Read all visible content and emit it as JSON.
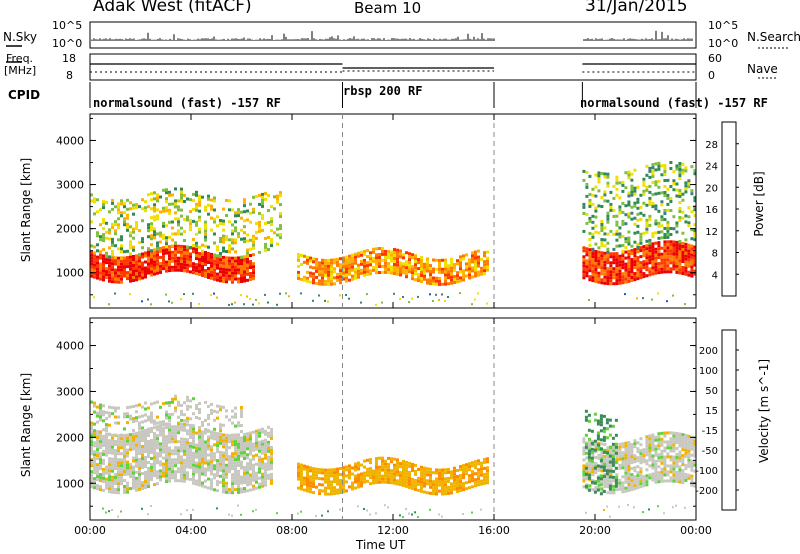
{
  "header": {
    "radar_title": "Adak West (fitACF)",
    "beam": "Beam 10",
    "date": "31/Jan/2015"
  },
  "summary_panels": {
    "nsky_label": "N.Sky",
    "nsearch_label": "N.Search",
    "noise_ticks": [
      "10^5",
      "10^0"
    ],
    "freq_label_top": "Freq.",
    "freq_label_unit": "[MHz]",
    "freq_ticks": [
      "18",
      "8"
    ],
    "nave_label": "Nave",
    "nave_ticks": [
      "60",
      "0"
    ],
    "cpid_label": "CPID",
    "cpid_segments": [
      {
        "label": "normalsound (fast) -157 RF",
        "start_hour": 0,
        "end_hour": 10
      },
      {
        "label": "rbsp 200 RF",
        "start_hour": 10,
        "end_hour": 16
      },
      {
        "label": "normalsound (fast) -157 RF",
        "start_hour": 19.5,
        "end_hour": 24
      }
    ]
  },
  "colorbars": {
    "power": {
      "label": "Power [dB]",
      "ticks": [
        "4",
        "8",
        "12",
        "16",
        "20",
        "24",
        "28"
      ],
      "colors": [
        "#1428e6",
        "#2a52be",
        "#3f7f7f",
        "#2e8b57",
        "#7fbf3f",
        "#f0e000",
        "#ffb000",
        "#ff7a00",
        "#ff3800",
        "#ee0000"
      ]
    },
    "velocity": {
      "label": "Velocity [m s^-1]",
      "ticks": [
        "200",
        "100",
        "50",
        "15",
        "-15",
        "-50",
        "-100",
        "-200"
      ],
      "colors": [
        "#1e2bb8",
        "#2f6fc4",
        "#3c8a5a",
        "#5fd23c",
        "#c8c8c0",
        "#f0b400",
        "#ff8c00",
        "#ff5000",
        "#ee0000"
      ]
    }
  },
  "chart_data": [
    {
      "type": "heatmap",
      "title": "Power",
      "ylabel": "Slant Range [km]",
      "xlabel": "Time UT",
      "x_ticks": [
        "00:00",
        "04:00",
        "08:00",
        "12:00",
        "16:00",
        "20:00",
        "00:00"
      ],
      "y_ticks": [
        "1000",
        "2000",
        "3000",
        "4000"
      ],
      "xlim_hours": [
        0,
        24
      ],
      "ylim_km": [
        200,
        4600
      ],
      "data_gap_hours": [
        16,
        19.5
      ],
      "dashed_time_markers_hours": [
        10,
        16
      ],
      "echo_regions": [
        {
          "start_hour": 0.0,
          "end_hour": 6.5,
          "range_low_km": 900,
          "range_high_km": 1500,
          "level": "strong",
          "value_db": 28
        },
        {
          "start_hour": 0.0,
          "end_hour": 7.5,
          "range_low_km": 1500,
          "range_high_km": 2800,
          "level": "patchy",
          "value_db": 16
        },
        {
          "start_hour": 8.2,
          "end_hour": 15.8,
          "range_low_km": 850,
          "range_high_km": 1450,
          "level": "moderate",
          "value_db": 22
        },
        {
          "start_hour": 19.5,
          "end_hour": 24.0,
          "range_low_km": 900,
          "range_high_km": 1600,
          "level": "strong",
          "value_db": 28
        },
        {
          "start_hour": 19.5,
          "end_hour": 24.0,
          "range_low_km": 1600,
          "range_high_km": 3400,
          "level": "patchy",
          "value_db": 14
        }
      ]
    },
    {
      "type": "heatmap",
      "title": "Velocity",
      "ylabel": "Slant Range [km]",
      "xlabel": "Time UT",
      "x_ticks": [
        "00:00",
        "04:00",
        "08:00",
        "12:00",
        "16:00",
        "20:00",
        "00:00"
      ],
      "y_ticks": [
        "1000",
        "2000",
        "3000",
        "4000"
      ],
      "xlim_hours": [
        0,
        24
      ],
      "ylim_km": [
        200,
        4600
      ],
      "data_gap_hours": [
        16,
        19.5
      ],
      "dashed_time_markers_hours": [
        10,
        16
      ],
      "echo_regions": [
        {
          "start_hour": 0.0,
          "end_hour": 7.2,
          "range_low_km": 900,
          "range_high_km": 2200,
          "level": "ground",
          "value_ms": 0
        },
        {
          "start_hour": 0.0,
          "end_hour": 6.0,
          "range_low_km": 2200,
          "range_high_km": 2800,
          "level": "patchy",
          "value_ms": 0
        },
        {
          "start_hour": 8.2,
          "end_hour": 15.8,
          "range_low_km": 900,
          "range_high_km": 1450,
          "level": "negative",
          "value_ms": -40
        },
        {
          "start_hour": 19.5,
          "end_hour": 24.0,
          "range_low_km": 900,
          "range_high_km": 2000,
          "level": "ground",
          "value_ms": 0
        },
        {
          "start_hour": 19.6,
          "end_hour": 20.8,
          "range_low_km": 900,
          "range_high_km": 2600,
          "level": "positive",
          "value_ms": 40
        }
      ]
    }
  ]
}
